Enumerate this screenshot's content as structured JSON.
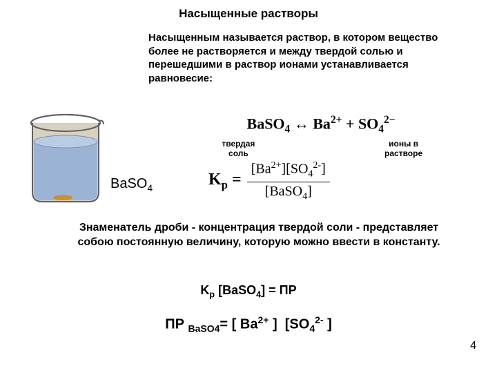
{
  "title": "Насыщенные растворы",
  "definition": "Насыщенным называется раствор, в котором вещество более не растворяется и между твердой солью и перешедшими в раствор ионами устанавливается равновесие:",
  "beaker": {
    "label_html": "BaSO<sub>4</sub>",
    "body_color": "#c0b090",
    "liquid_color": "#a0b8d8",
    "outline_color": "#505050",
    "sediment_color": "#d0a040"
  },
  "equation": {
    "main_html": "BaSO<sub>4</sub> &harr; Ba<sup>2+</sup> + SO<sub>4</sub><sup>2&minus;</sup>",
    "label_left": "твердая",
    "label_left2": "соль",
    "label_right": "ионы в",
    "label_right2": "растворе",
    "kp_html": "K<sub>р</sub> =",
    "numer_html": "[Ba<sup>2+</sup>][SO<sub>4</sub><sup>2-</sup>]",
    "denom_html": "[BaSO<sub>4</sub>]"
  },
  "explain": "Знаменатель дроби - концентрация твердой соли - представляет собою постоянную величину, которую можно ввести в константу.",
  "kp_line_html": "K<sub>р</sub> [BaSO<sub>4</sub>] = ПР",
  "pr_line_html": "ПР <sub>BaSO4</sub>= [ Ba<sup>2+</sup> ]&nbsp;&nbsp;[SO<sub>4</sub><sup>2-</sup> ]",
  "page_number": "4",
  "colors": {
    "text": "#000000",
    "accent": "#800000"
  }
}
